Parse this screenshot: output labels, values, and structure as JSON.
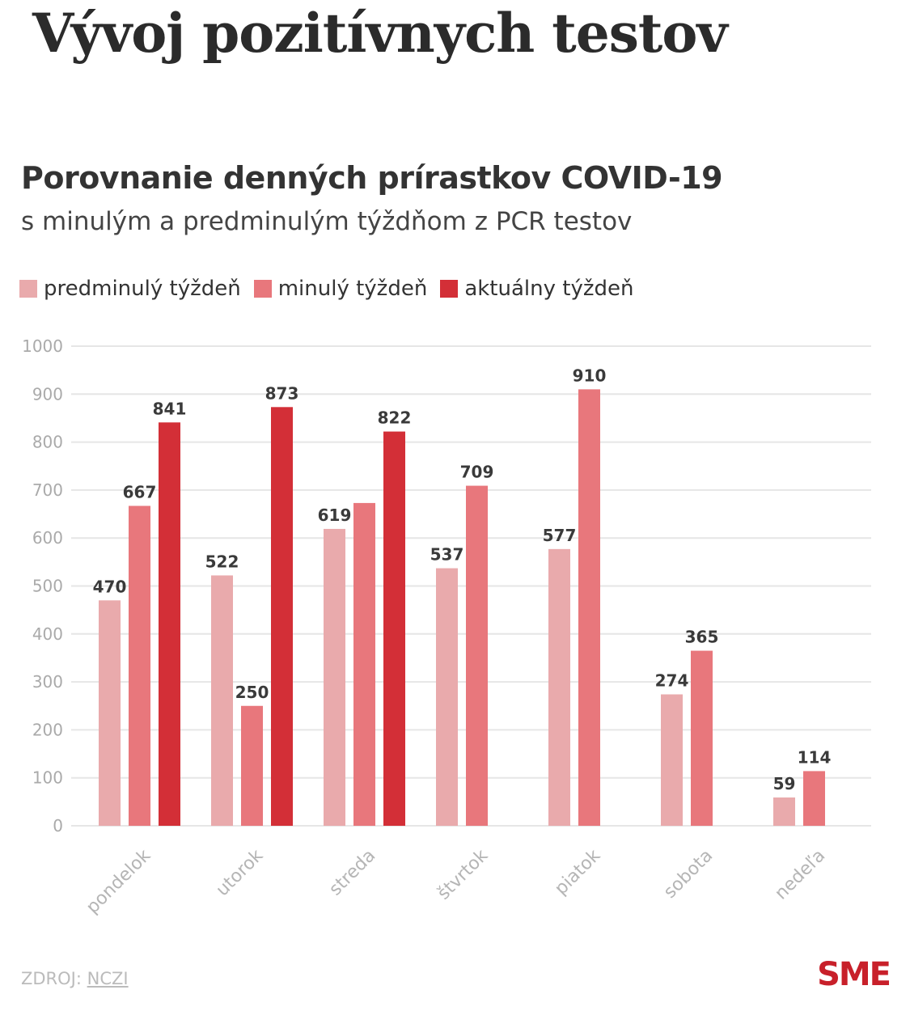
{
  "title": "Vývoj pozitívnych testov",
  "chart_data": {
    "type": "bar",
    "title": "Porovnanie denných prírastkov COVID-19",
    "subtitle": "s minulým a predminulým týždňom z PCR testov",
    "categories": [
      "pondelok",
      "utorok",
      "streda",
      "štvrtok",
      "piatok",
      "sobota",
      "nedeľa"
    ],
    "series": [
      {
        "name": "predminulý týždeň",
        "color": "#e9aaac",
        "values": [
          470,
          522,
          619,
          537,
          577,
          274,
          59
        ],
        "labels": [
          "470",
          "522",
          "619",
          "537",
          "577",
          "274",
          "59"
        ]
      },
      {
        "name": "minulý týždeň",
        "color": "#e8777c",
        "values": [
          667,
          250,
          673,
          709,
          910,
          365,
          114
        ],
        "labels": [
          "667",
          "250",
          "",
          "709",
          "910",
          "365",
          "114"
        ]
      },
      {
        "name": "aktuálny týždeň",
        "color": "#d32f37",
        "values": [
          841,
          873,
          822,
          null,
          null,
          null,
          null
        ],
        "labels": [
          "841",
          "873",
          "822",
          "",
          "",
          "",
          ""
        ]
      }
    ],
    "yticks": [
      "0",
      "100",
      "200",
      "300",
      "400",
      "500",
      "600",
      "700",
      "800",
      "900",
      "1000"
    ],
    "ylim": [
      0,
      1000
    ],
    "grid": true,
    "legend": "top-left"
  },
  "footer": {
    "source_label": "ZDROJ:",
    "source_link": "NCZI",
    "logo": "SME"
  }
}
